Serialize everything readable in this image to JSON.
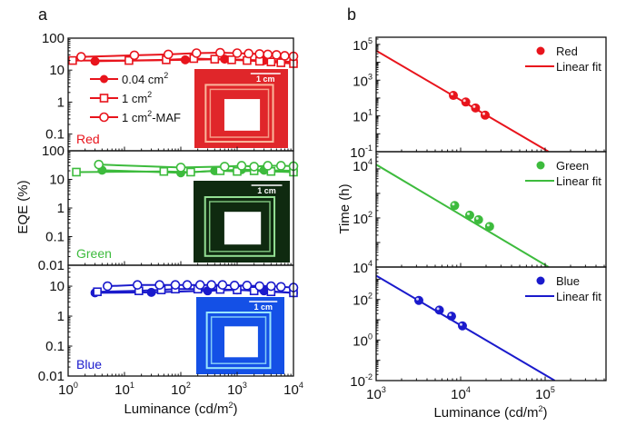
{
  "chart_data": [
    {
      "panel": "a",
      "type": "line",
      "title": "",
      "xlabel": "Luminance (cd/m²)",
      "ylabel": "EQE (%)",
      "xscale": "log",
      "yscale": "log",
      "xlim": [
        1,
        10000
      ],
      "x_ticks": [
        "10^0",
        "10^1",
        "10^2",
        "10^3",
        "10^4"
      ],
      "legend": {
        "placement": "upper-left of red subplot",
        "entries": [
          {
            "label": "0.04 cm²",
            "marker": "filled-circle"
          },
          {
            "label": "1 cm²",
            "marker": "open-square"
          },
          {
            "label": "1 cm²-MAF",
            "marker": "open-circle"
          }
        ]
      },
      "subplots": [
        {
          "name": "Red",
          "color": "#e8141c",
          "ylim": [
            0.03,
            100
          ],
          "y_ticks": [
            "100",
            "10",
            "1",
            "0.1"
          ],
          "inset": {
            "scale_bar": "1 cm",
            "bg": "#e0262a",
            "glow": "#ffd0b0"
          },
          "series": [
            {
              "name": "0.04 cm²",
              "marker": "filled-circle",
              "x": [
                3,
                120,
                600,
                1500,
                3000,
                6000,
                10000
              ],
              "y": [
                19,
                21,
                22,
                21,
                20,
                19,
                18
              ]
            },
            {
              "name": "1 cm²",
              "marker": "open-square",
              "x": [
                1.2,
                12,
                55,
                170,
                400,
                800,
                1500,
                2500,
                4000,
                6000,
                10000
              ],
              "y": [
                20,
                20,
                21,
                23,
                22,
                21,
                20,
                19,
                18,
                17,
                16
              ]
            },
            {
              "name": "1 cm²-MAF",
              "marker": "open-circle",
              "x": [
                1.7,
                15,
                60,
                190,
                500,
                1000,
                1600,
                2500,
                3500,
                5000,
                7000,
                10000
              ],
              "y": [
                26,
                29,
                31,
                34,
                35,
                34,
                33,
                32,
                31,
                30,
                28,
                27
              ]
            }
          ]
        },
        {
          "name": "Green",
          "color": "#3dbb3d",
          "ylim": [
            0.01,
            100
          ],
          "y_ticks": [
            "100",
            "10",
            "1",
            "0.1",
            "0.01"
          ],
          "inset": {
            "scale_bar": "1 cm",
            "bg": "#0f2a10",
            "glow": "#aaffaa"
          },
          "series": [
            {
              "name": "0.04 cm²",
              "marker": "filled-circle",
              "x": [
                4,
                100,
                400,
                1200,
                3000,
                10000
              ],
              "y": [
                21,
                17,
                20,
                22,
                21,
                20
              ]
            },
            {
              "name": "1 cm²",
              "marker": "open-square",
              "x": [
                1.4,
                50,
                150,
                500,
                1000,
                2000,
                4000,
                10000
              ],
              "y": [
                18,
                19,
                18,
                20,
                19,
                20,
                19,
                18
              ]
            },
            {
              "name": "1 cm²-MAF",
              "marker": "open-circle",
              "x": [
                3.5,
                100,
                600,
                1200,
                2000,
                3500,
                6000,
                10000
              ],
              "y": [
                33,
                26,
                28,
                30,
                28,
                30,
                30,
                29
              ]
            }
          ]
        },
        {
          "name": "Blue",
          "color": "#1a1acc",
          "ylim": [
            0.01,
            50
          ],
          "y_ticks": [
            "10",
            "1",
            "0.1",
            "0.01"
          ],
          "inset": {
            "scale_bar": "1 cm",
            "bg": "#1450e6",
            "glow": "#b0ffff"
          },
          "series": [
            {
              "name": "0.04 cm²",
              "marker": "filled-circle",
              "x": [
                3,
                30,
                300,
                1000,
                3000,
                10000
              ],
              "y": [
                6,
                6.2,
                7,
                7.5,
                7,
                6
              ]
            },
            {
              "name": "1 cm²",
              "marker": "open-square",
              "x": [
                3.3,
                18,
                45,
                80,
                200,
                500,
                1000,
                2000,
                4000,
                10000
              ],
              "y": [
                6.5,
                7,
                7.5,
                8,
                8,
                7.8,
                7.5,
                7,
                6.5,
                6
              ]
            },
            {
              "name": "1 cm²-MAF",
              "marker": "open-circle",
              "x": [
                5,
                17,
                42,
                80,
                130,
                220,
                350,
                550,
                900,
                1500,
                2500,
                4000,
                6000,
                10000
              ],
              "y": [
                10,
                11,
                11,
                11,
                11,
                11,
                11,
                11,
                10.5,
                10.5,
                10,
                10,
                9.5,
                9
              ]
            }
          ]
        }
      ]
    },
    {
      "panel": "b",
      "type": "scatter",
      "title": "",
      "xlabel": "Luminance (cd/m²)",
      "ylabel": "Time (h)",
      "xscale": "log",
      "yscale": "log",
      "xlim": [
        1000,
        530000
      ],
      "x_ticks": [
        "10^3",
        "10^4",
        "10^5"
      ],
      "subplots": [
        {
          "name": "Red",
          "color": "#e8141c",
          "ylim_exp": [
            -1,
            5
          ],
          "y_ticks": [
            "10^5",
            "10^3",
            "10^1",
            "10^-1"
          ],
          "legend": [
            {
              "label": "Red",
              "marker": "ball"
            },
            {
              "label": "Linear fit",
              "marker": "line"
            }
          ],
          "points": {
            "x": [
              8200,
              11500,
              15000,
              19500
            ],
            "y": [
              140,
              60,
              28,
              11
            ]
          },
          "fit": {
            "x": [
              1000,
              110000
            ],
            "y": [
              45000,
              0.1
            ]
          }
        },
        {
          "name": "Green",
          "color": "#3dbb3d",
          "ylim_exp": [
            0,
            4.6
          ],
          "y_ticks": [
            "10^4",
            "10^2",
            "10^4"
          ],
          "legend": [
            {
              "label": "Green",
              "marker": "ball"
            },
            {
              "label": "Linear fit",
              "marker": "line"
            }
          ],
          "points": {
            "x": [
              8500,
              12800,
              16300,
              22000
            ],
            "y": [
              320,
              130,
              85,
              45
            ]
          },
          "fit": {
            "x": [
              1000,
              110000
            ],
            "y": [
              15000,
              1
            ]
          }
        },
        {
          "name": "Blue",
          "color": "#1a1acc",
          "ylim_exp": [
            -2,
            3.6
          ],
          "y_ticks": [
            "10^2",
            "10^0",
            "10^-2"
          ],
          "legend": [
            {
              "label": "Blue",
              "marker": "ball"
            },
            {
              "label": "Linear fit",
              "marker": "line"
            }
          ],
          "points": {
            "x": [
              3200,
              5600,
              7800,
              10500
            ],
            "y": [
              90,
              30,
              15,
              5
            ]
          },
          "fit": {
            "x": [
              1000,
              130000
            ],
            "y": [
              1500,
              0.01
            ]
          }
        }
      ]
    }
  ],
  "labels": {
    "panel_a": "a",
    "panel_b": "b",
    "xlabel": "Luminance (cd/m",
    "xlabel_sup": "2",
    "xlabel_end": ")",
    "ylabel_a": "EQE (%)",
    "ylabel_b": "Time (h)",
    "legend_a": [
      {
        "text": "0.04 cm",
        "sup": "2",
        "tail": ""
      },
      {
        "text": "1 cm",
        "sup": "2",
        "tail": ""
      },
      {
        "text": "1 cm",
        "sup": "2",
        "tail": "-MAF"
      }
    ],
    "scale_bar": "1 cm"
  }
}
